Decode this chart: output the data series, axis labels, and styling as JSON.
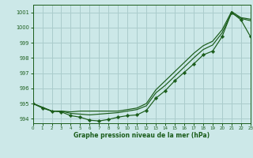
{
  "title": "Graphe pression niveau de la mer (hPa)",
  "bg_color": "#cce8e8",
  "grid_color": "#aacccc",
  "line_color": "#1a5c1a",
  "marker_color": "#1a5c1a",
  "xlim": [
    0,
    23
  ],
  "ylim": [
    993.7,
    1001.5
  ],
  "yticks": [
    994,
    995,
    996,
    997,
    998,
    999,
    1000,
    1001
  ],
  "xticks": [
    0,
    1,
    2,
    3,
    4,
    5,
    6,
    7,
    8,
    9,
    10,
    11,
    12,
    13,
    14,
    15,
    16,
    17,
    18,
    19,
    20,
    21,
    22,
    23
  ],
  "series_upper": [
    995.0,
    994.75,
    994.5,
    994.5,
    994.45,
    994.5,
    994.5,
    994.5,
    994.5,
    994.5,
    994.6,
    994.7,
    995.0,
    995.9,
    996.5,
    997.1,
    997.7,
    998.3,
    998.8,
    999.1,
    999.85,
    1001.05,
    1000.65,
    1000.55
  ],
  "series_lower": [
    995.0,
    994.75,
    994.5,
    994.5,
    994.35,
    994.3,
    994.25,
    994.3,
    994.35,
    994.4,
    994.5,
    994.6,
    994.85,
    995.7,
    996.2,
    996.8,
    997.4,
    998.0,
    998.55,
    998.85,
    999.65,
    1000.95,
    1000.6,
    1000.45
  ],
  "series_marker": [
    995.0,
    994.7,
    994.5,
    994.45,
    994.2,
    994.1,
    993.9,
    993.85,
    993.95,
    994.1,
    994.2,
    994.25,
    994.55,
    995.35,
    995.85,
    996.5,
    997.05,
    997.6,
    998.2,
    998.45,
    999.4,
    1001.0,
    1000.5,
    999.4
  ]
}
